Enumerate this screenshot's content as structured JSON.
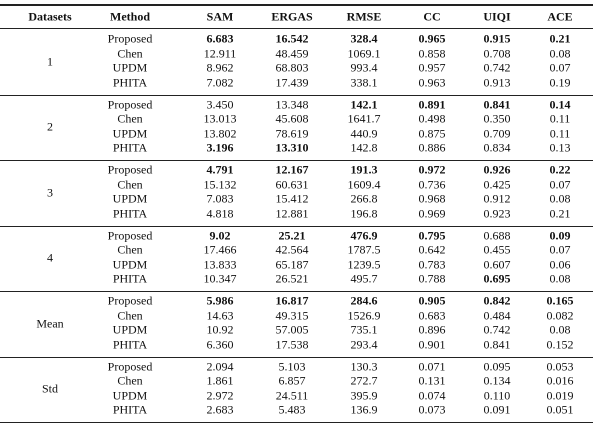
{
  "header": [
    "Datasets",
    "Method",
    "SAM",
    "ERGAS",
    "RMSE",
    "CC",
    "UIQI",
    "ACE"
  ],
  "groups": [
    {
      "label": "1",
      "rows": [
        {
          "cells": [
            "Proposed",
            "6.683",
            "16.542",
            "328.4",
            "0.965",
            "0.915",
            "0.21"
          ],
          "bold": [
            1,
            2,
            3,
            4,
            5,
            6
          ]
        },
        {
          "cells": [
            "Chen",
            "12.911",
            "48.459",
            "1069.1",
            "0.858",
            "0.708",
            "0.08"
          ],
          "bold": []
        },
        {
          "cells": [
            "UPDM",
            "8.962",
            "68.803",
            "993.4",
            "0.957",
            "0.742",
            "0.07"
          ],
          "bold": []
        },
        {
          "cells": [
            "PHITA",
            "7.082",
            "17.439",
            "338.1",
            "0.963",
            "0.913",
            "0.19"
          ],
          "bold": []
        }
      ]
    },
    {
      "label": "2",
      "rows": [
        {
          "cells": [
            "Proposed",
            "3.450",
            "13.348",
            "142.1",
            "0.891",
            "0.841",
            "0.14"
          ],
          "bold": [
            3,
            4,
            5,
            6
          ]
        },
        {
          "cells": [
            "Chen",
            "13.013",
            "45.608",
            "1641.7",
            "0.498",
            "0.350",
            "0.11"
          ],
          "bold": []
        },
        {
          "cells": [
            "UPDM",
            "13.802",
            "78.619",
            "440.9",
            "0.875",
            "0.709",
            "0.11"
          ],
          "bold": []
        },
        {
          "cells": [
            "PHITA",
            "3.196",
            "13.310",
            "142.8",
            "0.886",
            "0.834",
            "0.13"
          ],
          "bold": [
            1,
            2
          ]
        }
      ]
    },
    {
      "label": "3",
      "rows": [
        {
          "cells": [
            "Proposed",
            "4.791",
            "12.167",
            "191.3",
            "0.972",
            "0.926",
            "0.22"
          ],
          "bold": [
            1,
            2,
            3,
            4,
            5,
            6
          ]
        },
        {
          "cells": [
            "Chen",
            "15.132",
            "60.631",
            "1609.4",
            "0.736",
            "0.425",
            "0.07"
          ],
          "bold": []
        },
        {
          "cells": [
            "UPDM",
            "7.083",
            "15.412",
            "266.8",
            "0.968",
            "0.912",
            "0.08"
          ],
          "bold": []
        },
        {
          "cells": [
            "PHITA",
            "4.818",
            "12.881",
            "196.8",
            "0.969",
            "0.923",
            "0.21"
          ],
          "bold": []
        }
      ]
    },
    {
      "label": "4",
      "rows": [
        {
          "cells": [
            "Proposed",
            "9.02",
            "25.21",
            "476.9",
            "0.795",
            "0.688",
            "0.09"
          ],
          "bold": [
            1,
            2,
            3,
            4,
            6
          ]
        },
        {
          "cells": [
            "Chen",
            "17.466",
            "42.564",
            "1787.5",
            "0.642",
            "0.455",
            "0.07"
          ],
          "bold": []
        },
        {
          "cells": [
            "UPDM",
            "13.833",
            "65.187",
            "1239.5",
            "0.783",
            "0.607",
            "0.06"
          ],
          "bold": []
        },
        {
          "cells": [
            "PHITA",
            "10.347",
            "26.521",
            "495.7",
            "0.788",
            "0.695",
            "0.08"
          ],
          "bold": [
            5
          ]
        }
      ]
    },
    {
      "label": "Mean",
      "rows": [
        {
          "cells": [
            "Proposed",
            "5.986",
            "16.817",
            "284.6",
            "0.905",
            "0.842",
            "0.165"
          ],
          "bold": [
            1,
            2,
            3,
            4,
            5,
            6
          ]
        },
        {
          "cells": [
            "Chen",
            "14.63",
            "49.315",
            "1526.9",
            "0.683",
            "0.484",
            "0.082"
          ],
          "bold": []
        },
        {
          "cells": [
            "UPDM",
            "10.92",
            "57.005",
            "735.1",
            "0.896",
            "0.742",
            "0.08"
          ],
          "bold": []
        },
        {
          "cells": [
            "PHITA",
            "6.360",
            "17.538",
            "293.4",
            "0.901",
            "0.841",
            "0.152"
          ],
          "bold": []
        }
      ]
    },
    {
      "label": "Std",
      "rows": [
        {
          "cells": [
            "Proposed",
            "2.094",
            "5.103",
            "130.3",
            "0.071",
            "0.095",
            "0.053"
          ],
          "bold": []
        },
        {
          "cells": [
            "Chen",
            "1.861",
            "6.857",
            "272.7",
            "0.131",
            "0.134",
            "0.016"
          ],
          "bold": []
        },
        {
          "cells": [
            "UPDM",
            "2.972",
            "24.511",
            "395.9",
            "0.074",
            "0.110",
            "0.019"
          ],
          "bold": []
        },
        {
          "cells": [
            "PHITA",
            "2.683",
            "5.483",
            "136.9",
            "0.073",
            "0.091",
            "0.051"
          ],
          "bold": []
        }
      ]
    }
  ]
}
